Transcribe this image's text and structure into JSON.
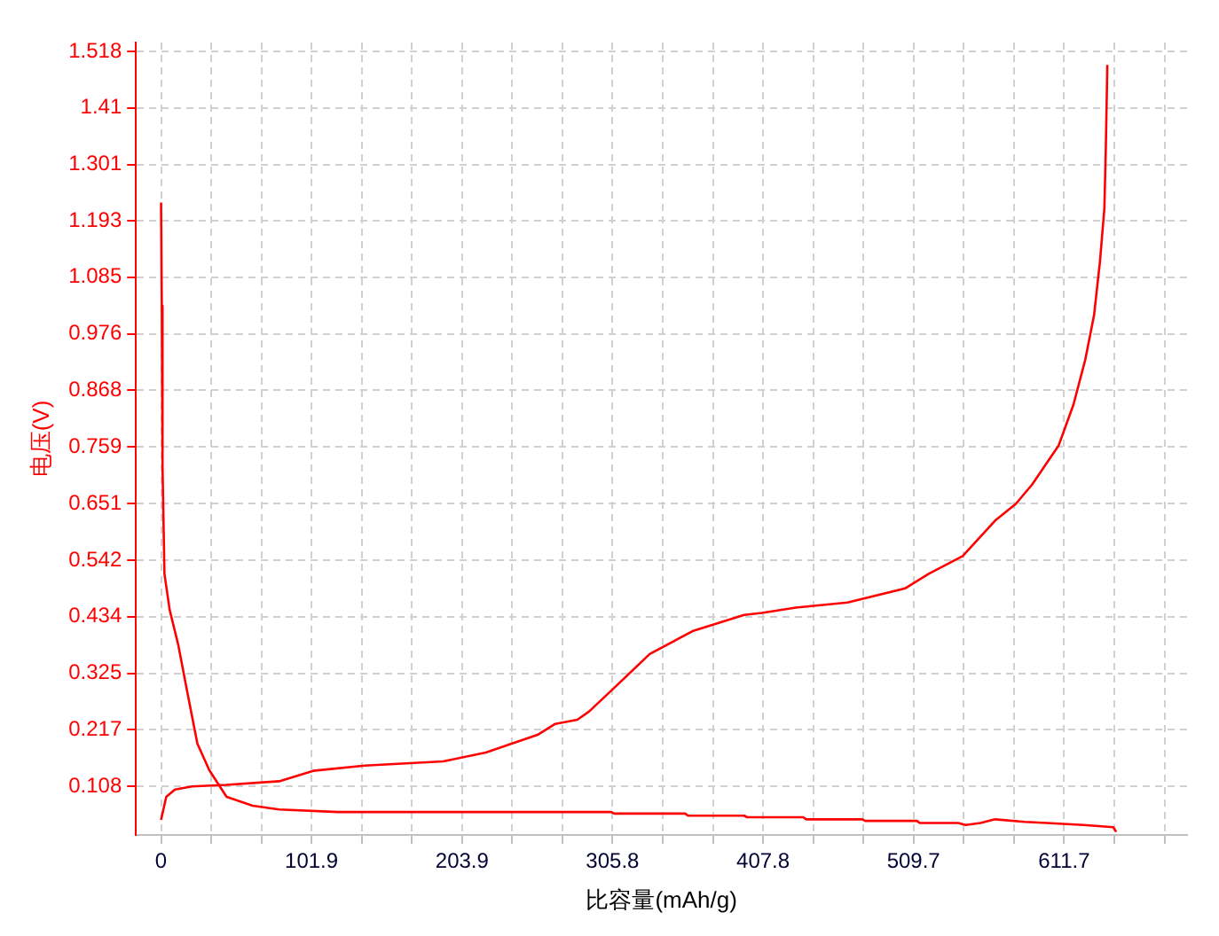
{
  "chart_data": {
    "type": "line",
    "xlabel": "比容量(mAh/g)",
    "ylabel": "电压(V)",
    "series": [
      {
        "color": "#ff0000",
        "x": [
          0,
          0.5,
          1,
          2.3,
          5.8,
          11.7,
          17.5,
          24.6,
          32.7,
          44.4,
          62,
          80,
          120,
          305,
          307,
          355,
          357,
          395,
          397,
          435,
          437,
          475,
          477,
          512,
          514,
          540,
          545,
          555,
          565,
          585,
          600,
          625,
          645,
          647
        ],
        "values": [
          1.228,
          1.03,
          0.72,
          0.516,
          0.447,
          0.379,
          0.293,
          0.19,
          0.139,
          0.088,
          0.071,
          0.064,
          0.059,
          0.059,
          0.056,
          0.056,
          0.052,
          0.052,
          0.049,
          0.049,
          0.045,
          0.045,
          0.042,
          0.042,
          0.038,
          0.038,
          0.034,
          0.038,
          0.045,
          0.04,
          0.038,
          0.034,
          0.03,
          0.021
        ]
      },
      {
        "color": "#ff0000",
        "x": [
          0,
          3.5,
          9.4,
          21,
          44,
          80,
          103,
          138,
          191,
          220,
          255,
          267,
          282,
          290,
          308,
          331,
          360,
          395,
          407,
          430,
          465,
          504,
          520,
          543,
          565,
          579,
          590,
          608,
          618,
          626,
          632,
          636,
          639,
          640,
          641
        ],
        "values": [
          0.044,
          0.088,
          0.102,
          0.108,
          0.111,
          0.118,
          0.138,
          0.148,
          0.156,
          0.173,
          0.207,
          0.228,
          0.236,
          0.252,
          0.3,
          0.362,
          0.406,
          0.437,
          0.441,
          0.451,
          0.461,
          0.488,
          0.516,
          0.55,
          0.618,
          0.65,
          0.687,
          0.762,
          0.84,
          0.926,
          1.012,
          1.115,
          1.217,
          1.337,
          1.492
        ]
      }
    ],
    "xlim": [
      -17,
      695
    ],
    "xticks": [
      0,
      {
        "value": 34,
        "label": null
      },
      {
        "value": 68,
        "label": null
      },
      101.9,
      {
        "value": 135.9,
        "label": null
      },
      {
        "value": 169.9,
        "label": null
      },
      203.9,
      {
        "value": 237.9,
        "label": null
      },
      {
        "value": 271.8,
        "label": null
      },
      305.8,
      {
        "value": 339.8,
        "label": null
      },
      {
        "value": 373.8,
        "label": null
      },
      407.8,
      {
        "value": 441.8,
        "label": null
      },
      {
        "value": 475.7,
        "label": null
      },
      509.7,
      {
        "value": 543.7,
        "label": null
      },
      {
        "value": 577.7,
        "label": null
      },
      611.7,
      {
        "value": 645.7,
        "label": null
      },
      {
        "value": 679.7,
        "label": null
      }
    ],
    "ylim": [
      0.015,
      1.535
    ],
    "yticks": [
      0.108,
      0.217,
      0.325,
      0.434,
      0.542,
      0.651,
      0.759,
      0.868,
      0.976,
      1.085,
      1.193,
      1.301,
      1.41,
      1.518
    ],
    "grid": true,
    "legend": false,
    "marker": "none",
    "line_style": "solid"
  }
}
